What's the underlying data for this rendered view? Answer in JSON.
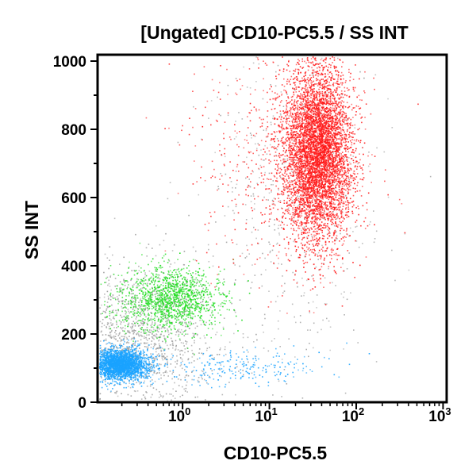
{
  "chart_data": {
    "type": "scatter",
    "title": "[Ungated] CD10-PC5.5 / SS INT",
    "xlabel": "CD10-PC5.5",
    "ylabel": "SS INT",
    "x_scale": "log",
    "xlim": [
      0.105,
      1100
    ],
    "ylim": [
      0,
      1020
    ],
    "x_ticks": [
      {
        "value": 1,
        "base": "10",
        "exp": "0"
      },
      {
        "value": 10,
        "base": "10",
        "exp": "1"
      },
      {
        "value": 100,
        "base": "10",
        "exp": "2"
      },
      {
        "value": 1000,
        "base": "10",
        "exp": "3"
      }
    ],
    "y_ticks": [
      0,
      200,
      400,
      600,
      800,
      1000
    ],
    "grid": false,
    "populations": [
      {
        "color": "#a0a0a0",
        "count": 1400,
        "log10_x_center": -0.5,
        "log10_x_sd": 0.45,
        "y_center": 200,
        "y_sd": 110
      },
      {
        "color": "#a8a8a8",
        "count": 500,
        "log10_x_center": 1.3,
        "log10_x_sd": 0.5,
        "y_center": 600,
        "y_sd": 250
      },
      {
        "color": "#22dd22",
        "count": 1300,
        "log10_x_center": -0.15,
        "log10_x_sd": 0.3,
        "y_center": 305,
        "y_sd": 45
      },
      {
        "color": "#1aa3ff",
        "count": 2600,
        "log10_x_center": -0.72,
        "log10_x_sd": 0.16,
        "y_center": 112,
        "y_sd": 22
      },
      {
        "color": "#1aa3ff",
        "count": 220,
        "log10_x_center": 0.7,
        "log10_x_sd": 0.5,
        "y_center": 105,
        "y_sd": 25
      },
      {
        "color": "#ff1a1a",
        "count": 5500,
        "log10_x_center": 1.55,
        "log10_x_sd": 0.2,
        "y_center": 730,
        "y_sd": 130
      },
      {
        "color": "#ff3030",
        "count": 500,
        "log10_x_center": 1.1,
        "log10_x_sd": 0.5,
        "y_center": 720,
        "y_sd": 170
      }
    ]
  }
}
